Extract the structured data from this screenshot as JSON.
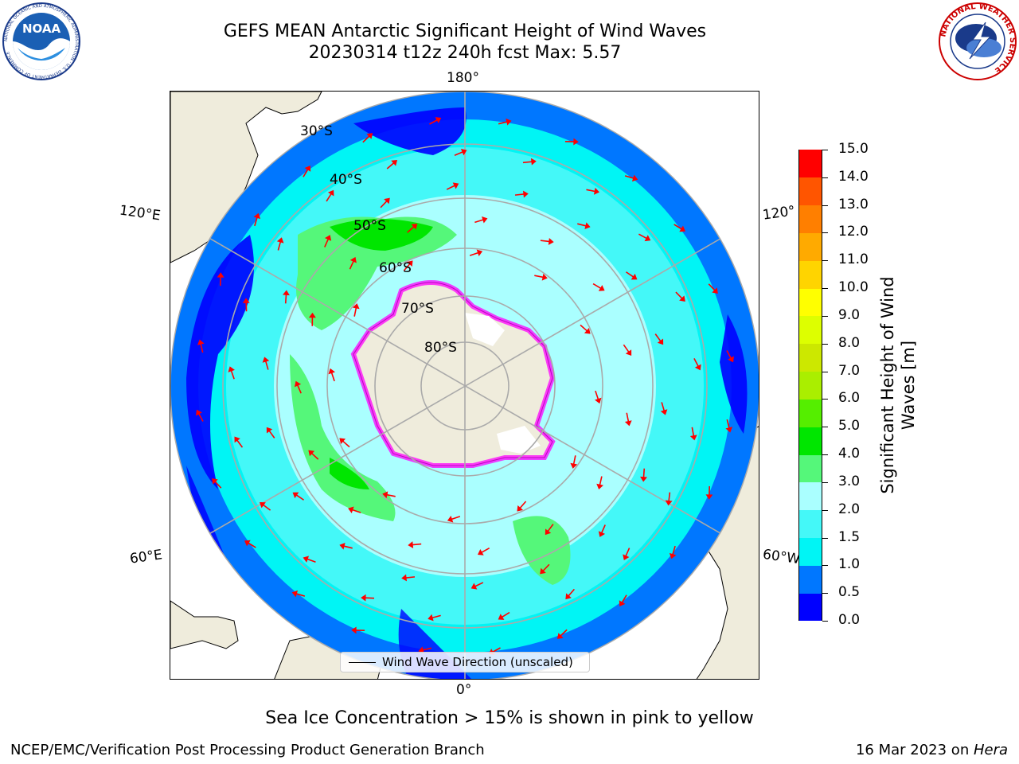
{
  "header": {
    "title_line1": "GEFS MEAN Antarctic Significant Height of Wind Waves",
    "title_line2": "20230314 t12z 240h fcst   Max: 5.57"
  },
  "logos": {
    "left": {
      "icon": "noaa-logo",
      "text": "NOAA",
      "ring_text": "NATIONAL OCEANIC AND ATMOSPHERIC ADMINISTRATION · U.S. DEPARTMENT OF COMMERCE"
    },
    "right": {
      "icon": "nws-logo",
      "ring_text": "NATIONAL WEATHER SERVICE"
    }
  },
  "map": {
    "projection": "south polar stereographic",
    "lon_labels": {
      "top": "180°",
      "bottom": "0°",
      "upper_left": "120°E",
      "upper_right": "120°",
      "lower_left": "60°E",
      "lower_right": "60°W"
    },
    "lat_labels": [
      "30°S",
      "40°S",
      "50°S",
      "60°S",
      "70°S",
      "80°S"
    ],
    "legend_label": "Wind Wave Direction (unscaled)",
    "arrow_color": "#ff0000",
    "land_color": "#efecdc",
    "ice_colors": [
      "#ff00ff",
      "#ff66cc",
      "#ffcc00"
    ]
  },
  "colorbar": {
    "title": "Significant Height of Wind Waves [m]",
    "ticks": [
      "0.0",
      "0.5",
      "1.0",
      "1.5",
      "2.0",
      "3.0",
      "4.0",
      "5.0",
      "6.0",
      "7.0",
      "8.0",
      "9.0",
      "10.0",
      "11.0",
      "12.0",
      "13.0",
      "14.0",
      "15.0"
    ],
    "colors": [
      "#0000ff",
      "#0077ff",
      "#00f5f5",
      "#44f8f8",
      "#aaffff",
      "#55f77a",
      "#00e600",
      "#55ee00",
      "#aaee00",
      "#cce800",
      "#ddff00",
      "#ffff00",
      "#ffd400",
      "#ffaa00",
      "#ff7f00",
      "#ff5500",
      "#ff0000"
    ]
  },
  "footer": {
    "ice_note": "Sea Ice Concentration > 15% is shown in pink to yellow",
    "left": "NCEP/EMC/Verification Post Processing Product Generation Branch",
    "date": "16 Mar 2023 on ",
    "machine": "Hera"
  }
}
